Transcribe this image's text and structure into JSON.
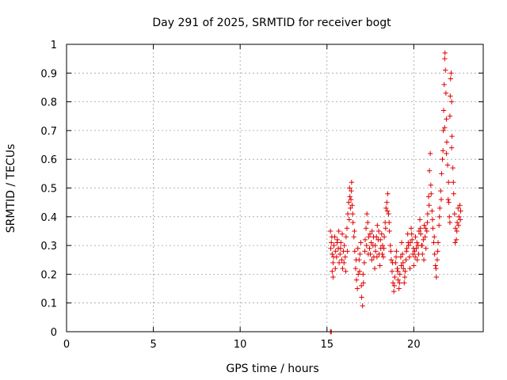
{
  "chart_data": {
    "type": "scatter",
    "title": "Day 291 of 2025, SRMTID for receiver bogt",
    "xlabel": "GPS time / hours",
    "ylabel": "SRMTID / TECUs",
    "xlim": [
      0,
      24
    ],
    "ylim": [
      0,
      1
    ],
    "x_ticks": [
      0,
      5,
      10,
      15,
      20
    ],
    "x_tick_labels": [
      "0",
      "5",
      "10",
      "15",
      "20"
    ],
    "y_ticks": [
      0,
      0.1,
      0.2,
      0.3,
      0.4,
      0.5,
      0.6,
      0.7,
      0.8,
      0.9,
      1
    ],
    "y_tick_labels": [
      "0",
      "0.1",
      "0.2",
      "0.3",
      "0.4",
      "0.5",
      "0.6",
      "0.7",
      "0.8",
      "0.9",
      "1"
    ],
    "grid": true,
    "marker": "+",
    "color": "#e00000",
    "series": [
      {
        "name": "SRMTID",
        "points": [
          [
            15.2,
            0.0
          ],
          [
            15.25,
            0.0
          ],
          [
            15.2,
            0.35
          ],
          [
            15.25,
            0.31
          ],
          [
            15.3,
            0.27
          ],
          [
            15.3,
            0.21
          ],
          [
            15.35,
            0.19
          ],
          [
            15.35,
            0.24
          ],
          [
            15.4,
            0.3
          ],
          [
            15.45,
            0.33
          ],
          [
            15.5,
            0.28
          ],
          [
            15.55,
            0.26
          ],
          [
            15.6,
            0.32
          ],
          [
            15.65,
            0.29
          ],
          [
            15.7,
            0.24
          ],
          [
            15.75,
            0.27
          ],
          [
            15.8,
            0.31
          ],
          [
            15.85,
            0.25
          ],
          [
            15.9,
            0.22
          ],
          [
            15.95,
            0.28
          ],
          [
            16.0,
            0.3
          ],
          [
            16.05,
            0.26
          ],
          [
            16.1,
            0.33
          ],
          [
            16.15,
            0.36
          ],
          [
            16.2,
            0.41
          ],
          [
            16.25,
            0.45
          ],
          [
            16.3,
            0.5
          ],
          [
            16.32,
            0.47
          ],
          [
            16.35,
            0.43
          ],
          [
            16.4,
            0.49
          ],
          [
            16.42,
            0.52
          ],
          [
            16.45,
            0.44
          ],
          [
            16.5,
            0.38
          ],
          [
            16.55,
            0.33
          ],
          [
            16.6,
            0.28
          ],
          [
            16.65,
            0.22
          ],
          [
            16.7,
            0.18
          ],
          [
            16.75,
            0.15
          ],
          [
            16.8,
            0.2
          ],
          [
            16.85,
            0.25
          ],
          [
            16.9,
            0.27
          ],
          [
            16.95,
            0.31
          ],
          [
            17.0,
            0.12
          ],
          [
            17.05,
            0.09
          ],
          [
            17.1,
            0.17
          ],
          [
            17.15,
            0.24
          ],
          [
            17.2,
            0.32
          ],
          [
            17.25,
            0.36
          ],
          [
            17.3,
            0.41
          ],
          [
            17.35,
            0.38
          ],
          [
            17.4,
            0.33
          ],
          [
            17.45,
            0.29
          ],
          [
            17.5,
            0.27
          ],
          [
            17.55,
            0.31
          ],
          [
            17.6,
            0.35
          ],
          [
            17.65,
            0.3
          ],
          [
            17.7,
            0.26
          ],
          [
            17.75,
            0.22
          ],
          [
            17.8,
            0.28
          ],
          [
            17.85,
            0.33
          ],
          [
            17.9,
            0.37
          ],
          [
            17.95,
            0.32
          ],
          [
            18.0,
            0.27
          ],
          [
            18.05,
            0.23
          ],
          [
            18.1,
            0.29
          ],
          [
            18.15,
            0.34
          ],
          [
            18.2,
            0.3
          ],
          [
            18.25,
            0.26
          ],
          [
            18.3,
            0.33
          ],
          [
            18.35,
            0.38
          ],
          [
            18.4,
            0.43
          ],
          [
            18.45,
            0.45
          ],
          [
            18.5,
            0.48
          ],
          [
            18.55,
            0.41
          ],
          [
            18.6,
            0.35
          ],
          [
            18.65,
            0.3
          ],
          [
            18.7,
            0.25
          ],
          [
            18.75,
            0.21
          ],
          [
            18.8,
            0.17
          ],
          [
            18.85,
            0.14
          ],
          [
            18.9,
            0.19
          ],
          [
            18.95,
            0.24
          ],
          [
            19.0,
            0.28
          ],
          [
            19.05,
            0.22
          ],
          [
            19.1,
            0.18
          ],
          [
            19.15,
            0.15
          ],
          [
            19.2,
            0.2
          ],
          [
            19.25,
            0.26
          ],
          [
            19.3,
            0.31
          ],
          [
            19.35,
            0.27
          ],
          [
            19.4,
            0.22
          ],
          [
            19.45,
            0.17
          ],
          [
            19.5,
            0.21
          ],
          [
            19.55,
            0.25
          ],
          [
            19.6,
            0.29
          ],
          [
            19.65,
            0.34
          ],
          [
            19.7,
            0.3
          ],
          [
            19.75,
            0.26
          ],
          [
            19.8,
            0.31
          ],
          [
            19.85,
            0.36
          ],
          [
            19.9,
            0.32
          ],
          [
            19.95,
            0.27
          ],
          [
            20.0,
            0.23
          ],
          [
            20.05,
            0.28
          ],
          [
            20.1,
            0.33
          ],
          [
            20.15,
            0.29
          ],
          [
            20.2,
            0.25
          ],
          [
            20.25,
            0.3
          ],
          [
            20.3,
            0.35
          ],
          [
            20.35,
            0.39
          ],
          [
            20.4,
            0.34
          ],
          [
            20.45,
            0.3
          ],
          [
            20.5,
            0.27
          ],
          [
            20.55,
            0.32
          ],
          [
            20.6,
            0.37
          ],
          [
            20.65,
            0.33
          ],
          [
            20.7,
            0.29
          ],
          [
            20.75,
            0.35
          ],
          [
            20.8,
            0.41
          ],
          [
            20.85,
            0.47
          ],
          [
            20.9,
            0.56
          ],
          [
            20.95,
            0.62
          ],
          [
            21.0,
            0.48
          ],
          [
            21.05,
            0.42
          ],
          [
            21.1,
            0.36
          ],
          [
            21.15,
            0.31
          ],
          [
            21.2,
            0.27
          ],
          [
            21.25,
            0.23
          ],
          [
            21.3,
            0.19
          ],
          [
            21.35,
            0.25
          ],
          [
            21.4,
            0.31
          ],
          [
            21.45,
            0.37
          ],
          [
            21.5,
            0.43
          ],
          [
            21.55,
            0.49
          ],
          [
            21.6,
            0.55
          ],
          [
            21.65,
            0.6
          ],
          [
            21.7,
            0.7
          ],
          [
            21.72,
            0.77
          ],
          [
            21.75,
            0.86
          ],
          [
            21.78,
            0.95
          ],
          [
            21.8,
            0.97
          ],
          [
            21.82,
            0.91
          ],
          [
            21.85,
            0.83
          ],
          [
            21.88,
            0.74
          ],
          [
            21.9,
            0.66
          ],
          [
            21.95,
            0.58
          ],
          [
            22.0,
            0.52
          ],
          [
            22.02,
            0.45
          ],
          [
            22.05,
            0.4
          ],
          [
            22.08,
            0.75
          ],
          [
            22.1,
            0.82
          ],
          [
            22.12,
            0.88
          ],
          [
            22.15,
            0.9
          ],
          [
            22.18,
            0.8
          ],
          [
            22.2,
            0.68
          ],
          [
            22.25,
            0.57
          ],
          [
            22.3,
            0.48
          ],
          [
            22.35,
            0.41
          ],
          [
            22.4,
            0.36
          ],
          [
            22.45,
            0.32
          ],
          [
            22.5,
            0.38
          ],
          [
            22.55,
            0.43
          ],
          [
            22.6,
            0.4
          ],
          [
            22.65,
            0.44
          ],
          [
            22.7,
            0.42
          ],
          [
            15.22,
            0.29
          ],
          [
            15.28,
            0.33
          ],
          [
            15.38,
            0.26
          ],
          [
            15.48,
            0.22
          ],
          [
            15.58,
            0.31
          ],
          [
            15.68,
            0.35
          ],
          [
            15.78,
            0.29
          ],
          [
            15.88,
            0.34
          ],
          [
            15.98,
            0.24
          ],
          [
            16.08,
            0.21
          ],
          [
            16.18,
            0.28
          ],
          [
            16.28,
            0.39
          ],
          [
            16.38,
            0.46
          ],
          [
            16.48,
            0.41
          ],
          [
            16.58,
            0.35
          ],
          [
            16.68,
            0.25
          ],
          [
            16.78,
            0.29
          ],
          [
            16.88,
            0.21
          ],
          [
            16.98,
            0.16
          ],
          [
            17.08,
            0.2
          ],
          [
            17.18,
            0.28
          ],
          [
            17.28,
            0.3
          ],
          [
            17.38,
            0.27
          ],
          [
            17.48,
            0.34
          ],
          [
            17.58,
            0.25
          ],
          [
            17.68,
            0.33
          ],
          [
            17.78,
            0.3
          ],
          [
            17.88,
            0.26
          ],
          [
            17.98,
            0.35
          ],
          [
            18.08,
            0.32
          ],
          [
            18.18,
            0.27
          ],
          [
            18.28,
            0.29
          ],
          [
            18.38,
            0.36
          ],
          [
            18.48,
            0.42
          ],
          [
            18.58,
            0.38
          ],
          [
            18.68,
            0.28
          ],
          [
            18.78,
            0.24
          ],
          [
            18.88,
            0.16
          ],
          [
            18.98,
            0.26
          ],
          [
            19.08,
            0.21
          ],
          [
            19.18,
            0.17
          ],
          [
            19.28,
            0.23
          ],
          [
            19.38,
            0.24
          ],
          [
            19.48,
            0.19
          ],
          [
            19.58,
            0.28
          ],
          [
            19.68,
            0.31
          ],
          [
            19.78,
            0.22
          ],
          [
            19.88,
            0.34
          ],
          [
            19.98,
            0.29
          ],
          [
            20.08,
            0.26
          ],
          [
            20.18,
            0.31
          ],
          [
            20.28,
            0.27
          ],
          [
            20.38,
            0.36
          ],
          [
            20.48,
            0.3
          ],
          [
            20.58,
            0.25
          ],
          [
            20.68,
            0.36
          ],
          [
            20.78,
            0.38
          ],
          [
            20.88,
            0.44
          ],
          [
            20.98,
            0.51
          ],
          [
            21.08,
            0.39
          ],
          [
            21.18,
            0.33
          ],
          [
            21.28,
            0.22
          ],
          [
            21.38,
            0.28
          ],
          [
            21.48,
            0.4
          ],
          [
            21.58,
            0.46
          ],
          [
            21.68,
            0.63
          ],
          [
            21.78,
            0.71
          ],
          [
            21.88,
            0.62
          ],
          [
            21.98,
            0.46
          ],
          [
            22.08,
            0.38
          ],
          [
            22.18,
            0.64
          ],
          [
            22.28,
            0.52
          ],
          [
            22.38,
            0.31
          ],
          [
            22.48,
            0.35
          ],
          [
            22.58,
            0.37
          ],
          [
            22.68,
            0.39
          ]
        ]
      }
    ]
  }
}
